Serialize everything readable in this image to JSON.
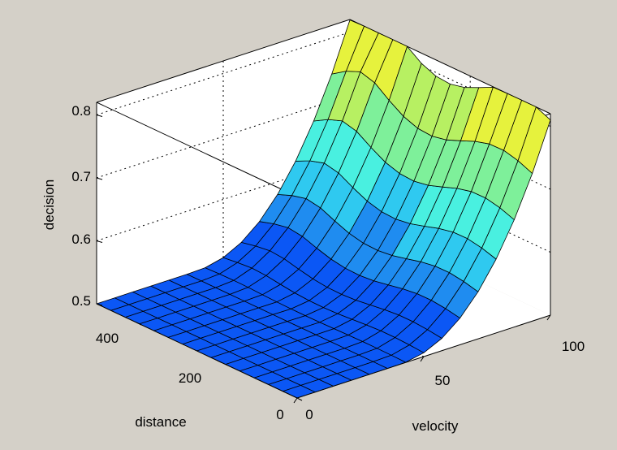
{
  "chart_data": {
    "type": "surface",
    "title": "",
    "xlabel": "velocity",
    "ylabel": "distance",
    "zlabel": "decision",
    "xlim": [
      0,
      100
    ],
    "ylim": [
      0,
      500
    ],
    "zlim": [
      0.5,
      0.82
    ],
    "x_ticks": [
      "0",
      "50",
      "100"
    ],
    "y_ticks": [
      "0",
      "200",
      "400"
    ],
    "z_ticks": [
      "0.5",
      "0.6",
      "0.7",
      "0.8"
    ],
    "x": [
      0,
      7.14,
      14.29,
      21.43,
      28.57,
      35.71,
      42.86,
      50,
      57.14,
      64.29,
      71.43,
      78.57,
      85.71,
      92.86,
      100
    ],
    "y": [
      0,
      35.7,
      71.4,
      107.1,
      142.9,
      178.6,
      214.3,
      250,
      285.7,
      321.4,
      357.1,
      392.9,
      428.6,
      464.3,
      500
    ],
    "surface_note_free": true,
    "grid": true,
    "colormap": [
      "#0b57f5",
      "#1f8cf0",
      "#2fc9f0",
      "#49f0e0",
      "#7ef09a",
      "#b7f062",
      "#e6f23d"
    ],
    "background": "#d4d0c8"
  }
}
